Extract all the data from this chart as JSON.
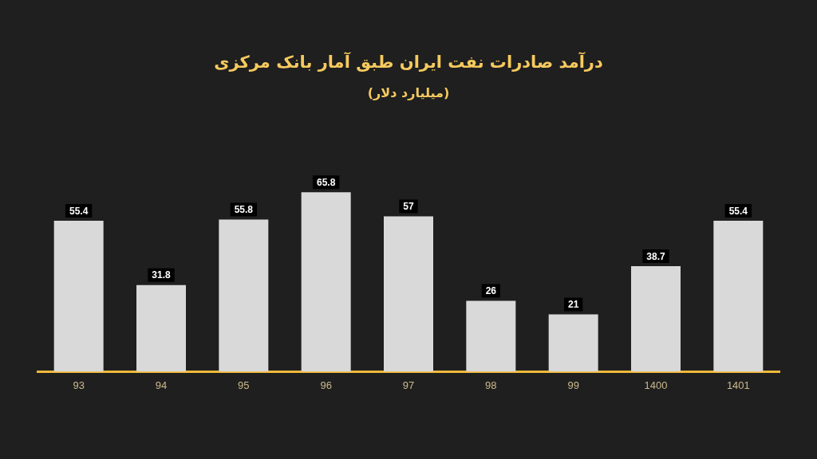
{
  "chart_data": {
    "type": "bar",
    "title": "درآمد صادرات نفت ایران طبق آمار بانک مرکزی",
    "subtitle": "(میلیارد دلار)",
    "categories": [
      "93",
      "94",
      "95",
      "96",
      "97",
      "98",
      "99",
      "1400",
      "1401"
    ],
    "values": [
      55.4,
      31.8,
      55.8,
      65.8,
      57,
      26,
      21,
      38.7,
      55.4
    ],
    "color": "#d9d9d9",
    "data_labels": true
  }
}
